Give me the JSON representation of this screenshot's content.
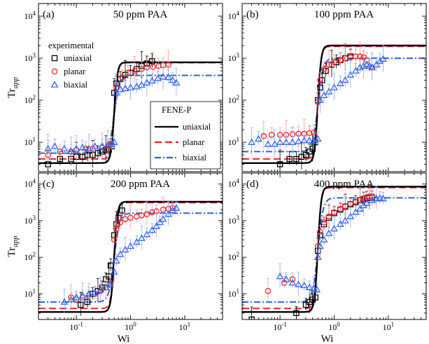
{
  "chart_data": [
    {
      "type": "line",
      "panel_label": "(a)",
      "title": "50 ppm PAA",
      "xlabel": "",
      "ylabel": "Tr_app",
      "xscale": "log",
      "yscale": "log",
      "xlim": [
        0.02,
        50
      ],
      "ylim": [
        2,
        20000
      ],
      "legend_experimental": {
        "title": "experimental",
        "entries": [
          "uniaxial",
          "planar",
          "biaxial"
        ],
        "placement": "top-left"
      },
      "legend_model": {
        "title": "FENE-P",
        "entries": [
          "uniaxial",
          "planar",
          "biaxial"
        ],
        "placement": "lower-middle"
      },
      "model": {
        "Wi_c": 0.5,
        "uniaxial": {
          "low": 3.2,
          "high": 800
        },
        "planar": {
          "low": 4.0,
          "high": 780
        },
        "biaxial": {
          "low": 5.5,
          "high": 390
        }
      },
      "series": [
        {
          "name": "uniaxial",
          "marker": "square",
          "x": [
            0.03,
            0.05,
            0.08,
            0.1,
            0.13,
            0.16,
            0.2,
            0.25,
            0.3,
            0.35,
            0.4,
            0.45,
            0.5,
            0.55,
            0.65,
            0.8,
            1.0,
            1.3,
            1.6,
            2.0,
            2.5
          ],
          "y": [
            3,
            4,
            4,
            4.5,
            4.5,
            5,
            5,
            5.5,
            6,
            6.5,
            7,
            8,
            150,
            250,
            320,
            400,
            450,
            550,
            650,
            750,
            850
          ]
        },
        {
          "name": "planar",
          "marker": "circle",
          "x": [
            0.03,
            0.05,
            0.08,
            0.1,
            0.15,
            0.2,
            0.3,
            0.4,
            0.45,
            0.55,
            0.7,
            0.9,
            1.2,
            1.6,
            2.0,
            2.6,
            3.3,
            4.0,
            5.0
          ],
          "y": [
            5,
            6,
            6,
            6.5,
            7,
            7,
            7.5,
            8,
            9,
            200,
            350,
            450,
            500,
            550,
            600,
            620,
            650,
            680,
            700
          ]
        },
        {
          "name": "biaxial",
          "marker": "triangle",
          "x": [
            0.03,
            0.04,
            0.06,
            0.08,
            0.1,
            0.13,
            0.17,
            0.22,
            0.3,
            0.38,
            0.45,
            0.5,
            0.55,
            0.65,
            0.8,
            1.0,
            1.3,
            1.6,
            2.0,
            2.5,
            3.2,
            4.0,
            5.0,
            6.0,
            7.0
          ],
          "y": [
            7,
            8,
            7,
            6,
            7,
            7.5,
            7,
            8,
            8,
            8.5,
            9,
            10,
            150,
            180,
            190,
            200,
            210,
            230,
            260,
            290,
            330,
            360,
            350,
            300,
            260
          ]
        }
      ]
    },
    {
      "type": "line",
      "panel_label": "(b)",
      "title": "100 ppm PAA",
      "xlabel": "",
      "ylabel": "",
      "xscale": "log",
      "yscale": "log",
      "xlim": [
        0.02,
        50
      ],
      "ylim": [
        2,
        20000
      ],
      "model": {
        "Wi_c": 0.5,
        "uniaxial": {
          "low": 3.2,
          "high": 2000
        },
        "planar": {
          "low": 4.0,
          "high": 1900
        },
        "biaxial": {
          "low": 6.0,
          "high": 1000
        }
      },
      "series": [
        {
          "name": "uniaxial",
          "marker": "square",
          "x": [
            0.1,
            0.15,
            0.2,
            0.25,
            0.3,
            0.35,
            0.4,
            0.45,
            0.5,
            0.55,
            0.6,
            0.7,
            0.9,
            1.1,
            1.3,
            1.6,
            2.0
          ],
          "y": [
            3,
            4,
            4,
            4.5,
            5,
            6,
            7,
            10,
            100,
            200,
            300,
            500,
            700,
            800,
            900,
            1000,
            1100
          ]
        },
        {
          "name": "planar",
          "marker": "circle",
          "x": [
            0.05,
            0.07,
            0.1,
            0.13,
            0.17,
            0.22,
            0.28,
            0.35,
            0.42,
            0.5,
            0.55,
            0.65,
            0.8,
            1.0,
            1.3,
            1.6,
            2.0,
            2.5,
            3.0,
            3.5,
            4.0,
            5.0
          ],
          "y": [
            14,
            15,
            15,
            15,
            15.5,
            16,
            16,
            16.5,
            17,
            90,
            300,
            550,
            700,
            800,
            900,
            1000,
            1050,
            1100,
            1100,
            1050,
            900,
            600
          ]
        },
        {
          "name": "biaxial",
          "marker": "triangle",
          "x": [
            0.03,
            0.04,
            0.06,
            0.08,
            0.1,
            0.13,
            0.17,
            0.22,
            0.28,
            0.35,
            0.42,
            0.5,
            0.55,
            0.65,
            0.8,
            1.0,
            1.3,
            1.6,
            2.0,
            2.5,
            3.0,
            3.5,
            4.0,
            4.5,
            5.0,
            6.0,
            7.0,
            8.0
          ],
          "y": [
            10,
            12,
            9,
            9,
            10,
            10,
            10,
            10.5,
            11,
            11,
            11,
            12,
            100,
            130,
            160,
            200,
            250,
            300,
            400,
            500,
            600,
            650,
            700,
            650,
            600,
            700,
            850,
            950
          ]
        }
      ]
    },
    {
      "type": "line",
      "panel_label": "(c)",
      "title": "200 ppm PAA",
      "xlabel": "Wi",
      "ylabel": "Tr_app",
      "xscale": "log",
      "yscale": "log",
      "xlim": [
        0.02,
        50
      ],
      "ylim": [
        2,
        20000
      ],
      "model": {
        "Wi_c": 0.5,
        "uniaxial": {
          "low": 3.2,
          "high": 3300
        },
        "planar": {
          "low": 4.0,
          "high": 3100
        },
        "biaxial": {
          "low": 6.0,
          "high": 1600
        }
      },
      "series": [
        {
          "name": "uniaxial",
          "marker": "square",
          "x": [
            0.12,
            0.16,
            0.2,
            0.25,
            0.3,
            0.35,
            0.4,
            0.43,
            0.5,
            0.55,
            0.6,
            0.7
          ],
          "y": [
            5,
            6,
            10,
            12,
            15,
            25,
            30,
            60,
            400,
            800,
            1200,
            1900
          ]
        },
        {
          "name": "planar",
          "marker": "circle",
          "x": [
            0.08,
            0.1,
            0.13,
            0.17,
            0.22,
            0.28,
            0.35,
            0.42,
            0.5,
            0.55,
            0.65,
            0.8,
            1.0,
            1.3,
            1.6,
            2.0,
            2.5,
            3.0,
            4.0,
            5.0,
            6.0
          ],
          "y": [
            8,
            7,
            8,
            9,
            10,
            12,
            15,
            20,
            300,
            600,
            900,
            1100,
            1200,
            1300,
            1400,
            1500,
            1700,
            1800,
            2000,
            2100,
            2200
          ]
        },
        {
          "name": "biaxial",
          "marker": "triangle",
          "x": [
            0.06,
            0.08,
            0.1,
            0.13,
            0.17,
            0.22,
            0.28,
            0.35,
            0.42,
            0.5,
            0.55,
            0.65,
            0.8,
            1.0,
            1.3,
            1.6,
            2.0,
            2.5,
            3.0,
            3.5,
            4.0,
            5.0,
            6.0,
            7.0
          ],
          "y": [
            6,
            7,
            8,
            9,
            10,
            11,
            13,
            15,
            18,
            40,
            80,
            120,
            160,
            200,
            260,
            330,
            420,
            550,
            700,
            900,
            1100,
            1500,
            1900,
            2200
          ]
        }
      ]
    },
    {
      "type": "line",
      "panel_label": "(d)",
      "title": "400 ppm PAA",
      "xlabel": "Wi",
      "ylabel": "",
      "xscale": "log",
      "yscale": "log",
      "xlim": [
        0.02,
        50
      ],
      "ylim": [
        2,
        20000
      ],
      "model": {
        "Wi_c": 0.5,
        "uniaxial": {
          "low": 3.2,
          "high": 8500
        },
        "planar": {
          "low": 4.0,
          "high": 8000
        },
        "biaxial": {
          "low": 6.0,
          "high": 4200
        }
      },
      "series": [
        {
          "name": "uniaxial",
          "marker": "square",
          "x": [
            0.03,
            0.2,
            0.3,
            0.35,
            0.4,
            0.45,
            0.5,
            0.55,
            0.65,
            0.8,
            1.0,
            1.3,
            1.6,
            2.0,
            2.5,
            3.0,
            3.5,
            4.0,
            4.5,
            5.0
          ],
          "y": [
            2,
            3,
            5,
            6,
            7,
            8,
            150,
            400,
            800,
            1200,
            1600,
            2000,
            2400,
            2800,
            3200,
            3600,
            3900,
            4100,
            4200,
            4300
          ]
        },
        {
          "name": "planar",
          "marker": "circle",
          "x": [
            0.06,
            0.12,
            0.17,
            0.5,
            0.55,
            0.65,
            0.8,
            1.0,
            1.3,
            1.6,
            2.0,
            2.5,
            3.0,
            3.5,
            4.0,
            4.5,
            5.0
          ],
          "y": [
            12,
            20,
            25,
            200,
            500,
            900,
            1300,
            1700,
            2100,
            2500,
            2900,
            3300,
            3700,
            4100,
            4400,
            4600,
            4700
          ]
        },
        {
          "name": "biaxial",
          "marker": "triangle",
          "x": [
            0.1,
            0.13,
            0.17,
            0.22,
            0.28,
            0.35,
            0.42,
            0.48,
            0.5,
            0.55,
            0.65,
            0.8,
            1.0,
            1.3,
            1.6,
            2.0,
            2.5,
            3.0,
            3.5,
            4.0,
            5.0,
            6.0,
            7.0,
            8.0
          ],
          "y": [
            30,
            25,
            20,
            18,
            17,
            15,
            14,
            13,
            100,
            200,
            300,
            450,
            600,
            800,
            1000,
            1300,
            1700,
            2100,
            2600,
            3000,
            3600,
            4000,
            4100,
            4000
          ]
        }
      ]
    }
  ]
}
